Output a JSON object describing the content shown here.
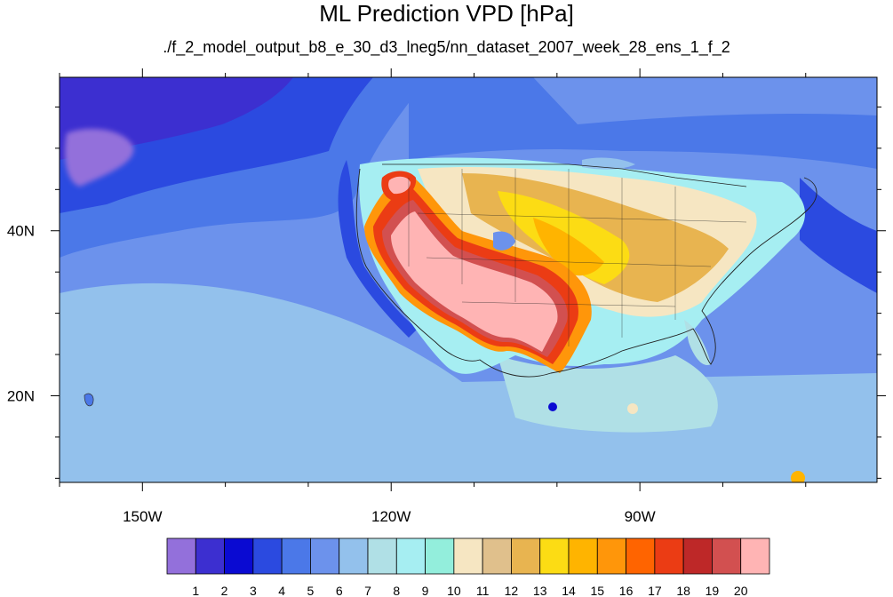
{
  "title": "ML Prediction VPD [hPa]",
  "subtitle": "./f_2_model_output_b8_e_30_d3_lneg5/nn_dataset_2007_week_28_ens_1_f_2",
  "axes": {
    "longitude_ticks": [
      {
        "lon": -150,
        "label": "150W"
      },
      {
        "lon": -120,
        "label": "120W"
      },
      {
        "lon": -90,
        "label": "90W"
      }
    ],
    "latitude_ticks": [
      {
        "lat": 40,
        "label": "40N"
      },
      {
        "lat": 20,
        "label": "20N"
      }
    ]
  },
  "colorbar": {
    "colors": [
      "#9370db",
      "#3c2fd0",
      "#0a0ad2",
      "#2b4ae0",
      "#4b78e8",
      "#6c92ec",
      "#93c1ec",
      "#b0e0e6",
      "#a6eef2",
      "#93eedc",
      "#f6e6c2",
      "#e0c08c",
      "#e8b450",
      "#fcdc14",
      "#ffb400",
      "#ff960a",
      "#ff6400",
      "#eb3c14",
      "#be2828",
      "#d25050",
      "#ffb4b4"
    ],
    "labels": [
      "1",
      "2",
      "3",
      "4",
      "5",
      "6",
      "7",
      "8",
      "9",
      "10",
      "11",
      "12",
      "13",
      "14",
      "15",
      "16",
      "17",
      "18",
      "19",
      "20"
    ]
  }
}
